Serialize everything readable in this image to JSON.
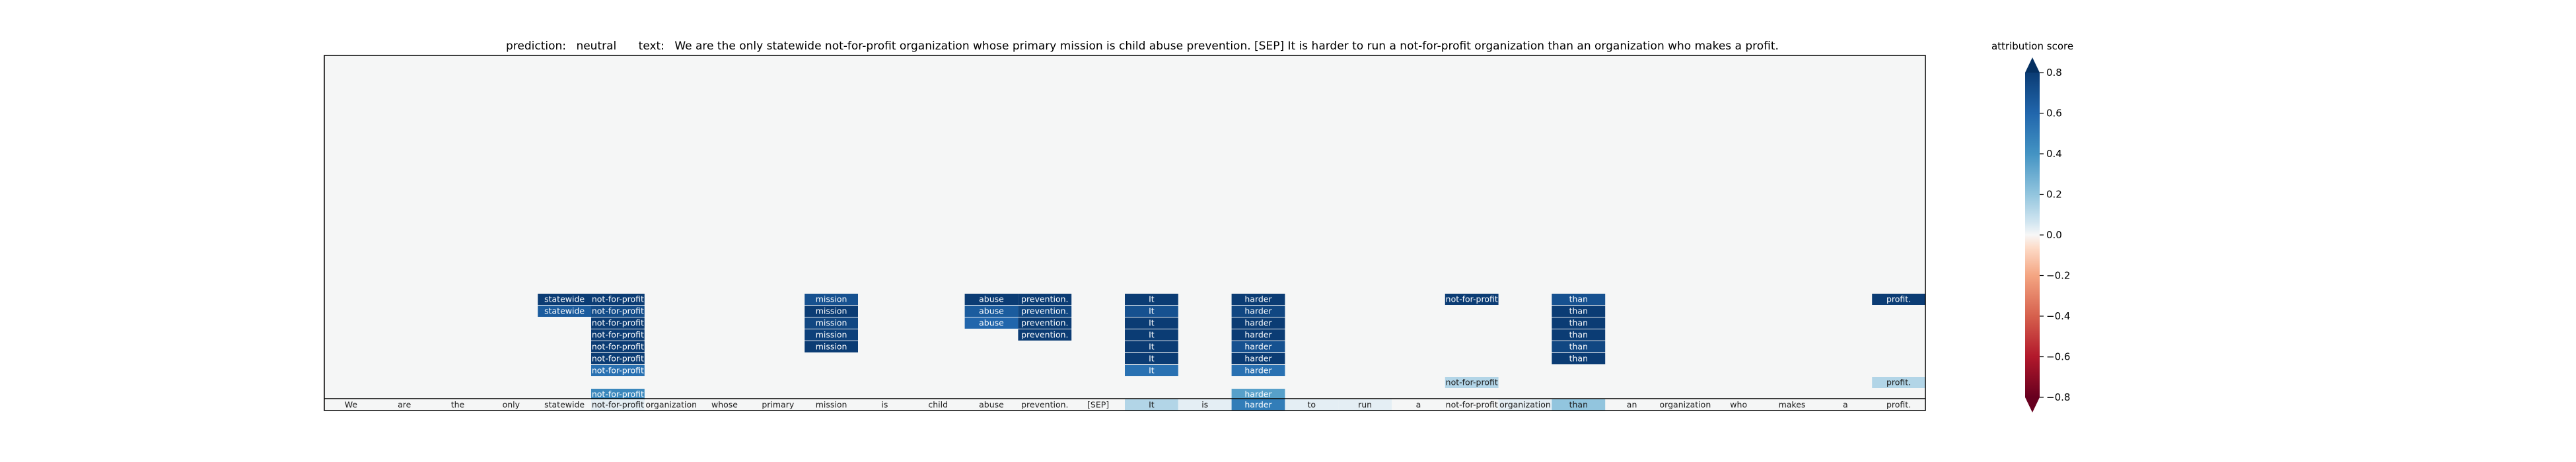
{
  "title": {
    "prediction_label": "prediction:",
    "prediction_value": "neutral",
    "text_label": "text:",
    "text_value": "We are the only statewide not-for-profit organization whose primary mission is child abuse prevention. [SEP] It is harder to run a not-for-profit organization than an organization who makes a profit."
  },
  "colorbar": {
    "label": "attribution score",
    "ticks": [
      "0.8",
      "0.6",
      "0.4",
      "0.2",
      "0.0",
      "−0.2",
      "−0.4",
      "−0.6",
      "−0.8"
    ],
    "range": [
      -0.8,
      0.8
    ],
    "colormap": "RdBu",
    "extend": "both"
  },
  "chart_data": {
    "type": "heatmap",
    "background_color": "#f5f6f6",
    "tokens": [
      "We",
      "are",
      "the",
      "only",
      "statewide",
      "not-for-profit",
      "organization",
      "whose",
      "primary",
      "mission",
      "is",
      "child",
      "abuse",
      "prevention.",
      "[SEP]",
      "It",
      "is",
      "harder",
      "to",
      "run",
      "a",
      "not-for-profit",
      "organization",
      "than",
      "an",
      "organization",
      "who",
      "makes",
      "a",
      "profit."
    ],
    "token_scores": [
      0.0,
      0.0,
      0.0,
      0.0,
      0.0,
      0.05,
      0.0,
      0.0,
      0.0,
      0.0,
      0.0,
      0.0,
      0.0,
      0.0,
      0.0,
      0.15,
      0.05,
      0.5,
      0.05,
      0.05,
      0.0,
      0.0,
      0.05,
      0.2,
      0.0,
      0.0,
      0.0,
      0.0,
      0.0,
      0.0
    ],
    "attributions": [
      {
        "token_index": 4,
        "text": "statewide",
        "values": [
          0.85,
          0.65
        ]
      },
      {
        "token_index": 5,
        "text": "not-for-profit",
        "values": [
          0.9,
          0.72,
          0.88,
          0.8,
          0.82,
          0.85,
          0.55,
          null,
          0.45
        ]
      },
      {
        "token_index": 9,
        "text": "mission",
        "values": [
          0.7,
          0.8,
          0.75,
          0.78,
          0.85
        ]
      },
      {
        "token_index": 12,
        "text": "abuse",
        "values": [
          0.85,
          0.65,
          0.6
        ]
      },
      {
        "token_index": 13,
        "text": "prevention.",
        "values": [
          0.88,
          0.75,
          0.8,
          0.85
        ]
      },
      {
        "token_index": 15,
        "text": "It",
        "values": [
          0.95,
          0.7,
          0.85,
          0.8,
          0.9,
          0.95,
          0.55
        ]
      },
      {
        "token_index": 17,
        "text": "harder",
        "values": [
          0.9,
          0.75,
          0.85,
          0.8,
          0.7,
          0.88,
          0.55,
          null,
          0.35
        ]
      },
      {
        "token_index": 21,
        "text": "not-for-profit",
        "values": [
          0.9,
          null,
          null,
          null,
          null,
          null,
          null,
          0.15
        ]
      },
      {
        "token_index": 23,
        "text": "than",
        "values": [
          0.7,
          0.85,
          0.8,
          0.9,
          0.75,
          0.95
        ]
      },
      {
        "token_index": 29,
        "text": "profit.",
        "values": [
          0.95,
          null,
          null,
          null,
          null,
          null,
          null,
          0.15
        ]
      }
    ]
  }
}
